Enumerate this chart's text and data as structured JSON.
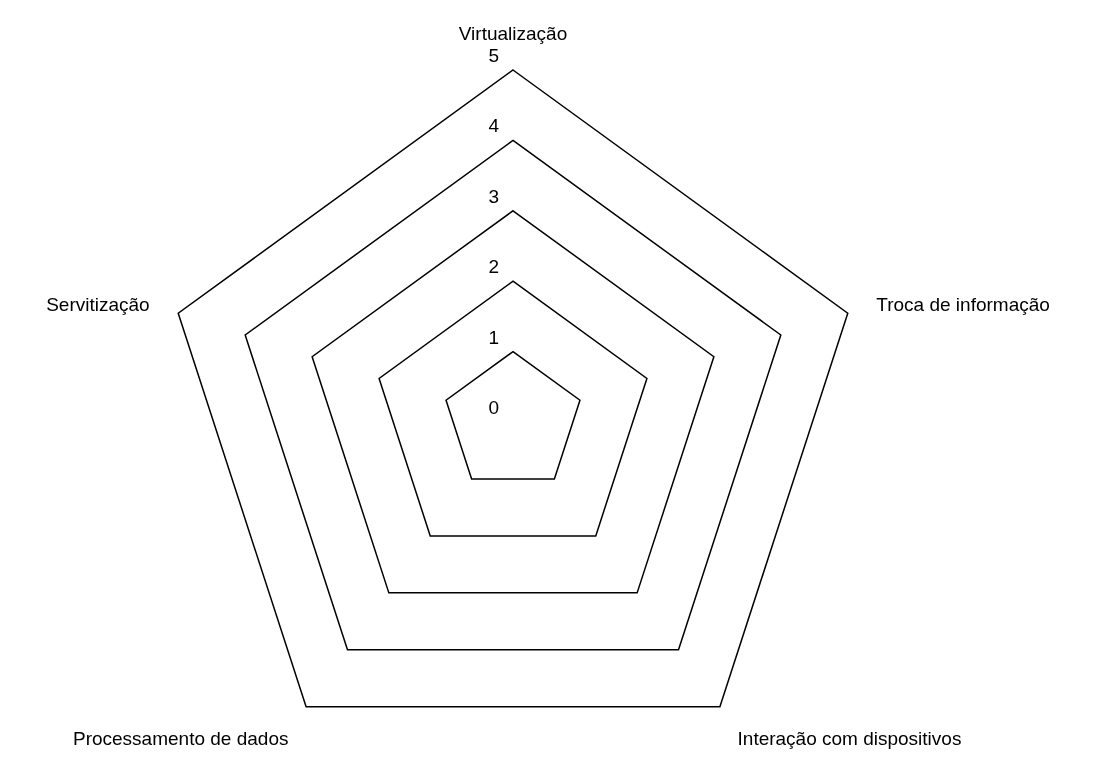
{
  "chart_data": {
    "type": "radar",
    "categories": [
      "Virtualização",
      "Troca de informação",
      "Interação com dispositivos",
      "Processamento de dados",
      "Servitização"
    ],
    "ylim": [
      0,
      5
    ],
    "yticks": [
      0,
      1,
      2,
      3,
      4,
      5
    ],
    "grid": true
  }
}
